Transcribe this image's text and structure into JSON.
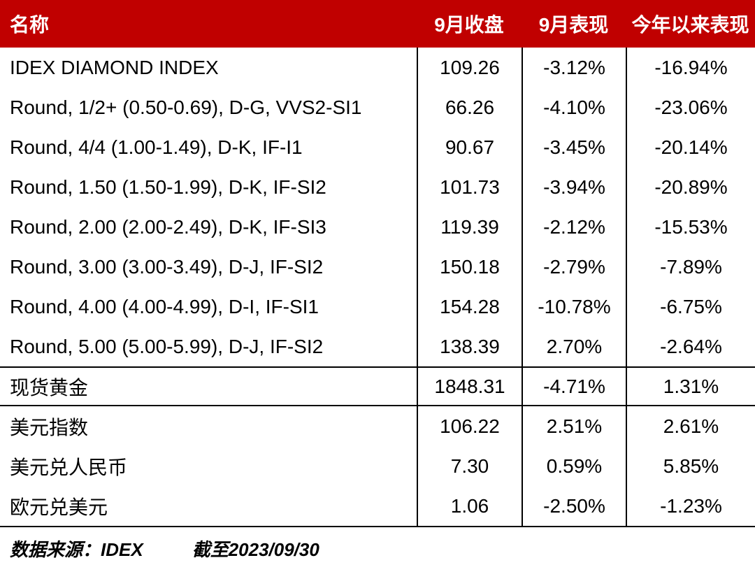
{
  "accent_color": "#c00000",
  "line_color": "#000000",
  "table": {
    "header": {
      "name": "名称",
      "close": "9月收盘",
      "month_perf": "9月表现",
      "ytd_perf": "今年以来表现"
    },
    "sections": [
      {
        "rows": [
          {
            "name": "IDEX DIAMOND INDEX",
            "close": "109.26",
            "month": "-3.12%",
            "ytd": "-16.94%"
          },
          {
            "name": "Round, 1/2+ (0.50-0.69), D-G, VVS2-SI1",
            "close": "66.26",
            "month": "-4.10%",
            "ytd": "-23.06%"
          },
          {
            "name": "Round, 4/4 (1.00-1.49), D-K, IF-I1",
            "close": "90.67",
            "month": "-3.45%",
            "ytd": "-20.14%"
          },
          {
            "name": "Round, 1.50 (1.50-1.99), D-K, IF-SI2",
            "close": "101.73",
            "month": "-3.94%",
            "ytd": "-20.89%"
          },
          {
            "name": "Round, 2.00 (2.00-2.49), D-K, IF-SI3",
            "close": "119.39",
            "month": "-2.12%",
            "ytd": "-15.53%"
          },
          {
            "name": "Round, 3.00 (3.00-3.49), D-J, IF-SI2",
            "close": "150.18",
            "month": "-2.79%",
            "ytd": "-7.89%"
          },
          {
            "name": "Round, 4.00 (4.00-4.99), D-I, IF-SI1",
            "close": "154.28",
            "month": "-10.78%",
            "ytd": "-6.75%"
          },
          {
            "name": "Round, 5.00 (5.00-5.99), D-J, IF-SI2",
            "close": "138.39",
            "month": "2.70%",
            "ytd": "-2.64%"
          }
        ]
      },
      {
        "rows": [
          {
            "name": "现货黄金",
            "close": "1848.31",
            "month": "-4.71%",
            "ytd": "1.31%"
          }
        ]
      },
      {
        "rows": [
          {
            "name": "美元指数",
            "close": "106.22",
            "month": "2.51%",
            "ytd": "2.61%"
          },
          {
            "name": "美元兑人民币",
            "close": "7.30",
            "month": "0.59%",
            "ytd": "5.85%"
          },
          {
            "name": "欧元兑美元",
            "close": "1.06",
            "month": "-2.50%",
            "ytd": "-1.23%"
          }
        ]
      }
    ],
    "footer": {
      "source": "数据来源：IDEX",
      "date": "截至2023/09/30"
    }
  },
  "chart_data": {
    "type": "table",
    "title": "",
    "columns": [
      "名称",
      "9月收盘",
      "9月表现",
      "今年以来表现"
    ],
    "rows": [
      [
        "IDEX DIAMOND INDEX",
        109.26,
        "-3.12%",
        "-16.94%"
      ],
      [
        "Round, 1/2+ (0.50-0.69), D-G, VVS2-SI1",
        66.26,
        "-4.10%",
        "-23.06%"
      ],
      [
        "Round, 4/4 (1.00-1.49), D-K, IF-I1",
        90.67,
        "-3.45%",
        "-20.14%"
      ],
      [
        "Round, 1.50 (1.50-1.99), D-K, IF-SI2",
        101.73,
        "-3.94%",
        "-20.89%"
      ],
      [
        "Round, 2.00 (2.00-2.49), D-K, IF-SI3",
        119.39,
        "-2.12%",
        "-15.53%"
      ],
      [
        "Round, 3.00 (3.00-3.49), D-J, IF-SI2",
        150.18,
        "-2.79%",
        "-7.89%"
      ],
      [
        "Round, 4.00 (4.00-4.99), D-I, IF-SI1",
        154.28,
        "-10.78%",
        "-6.75%"
      ],
      [
        "Round, 5.00 (5.00-5.99), D-J, IF-SI2",
        138.39,
        "2.70%",
        "-2.64%"
      ],
      [
        "现货黄金",
        1848.31,
        "-4.71%",
        "1.31%"
      ],
      [
        "美元指数",
        106.22,
        "2.51%",
        "2.61%"
      ],
      [
        "美元兑人民币",
        7.3,
        "0.59%",
        "5.85%"
      ],
      [
        "欧元兑美元",
        1.06,
        "-2.50%",
        "-1.23%"
      ]
    ],
    "footnote": "数据来源：IDEX　截至2023/09/30"
  }
}
